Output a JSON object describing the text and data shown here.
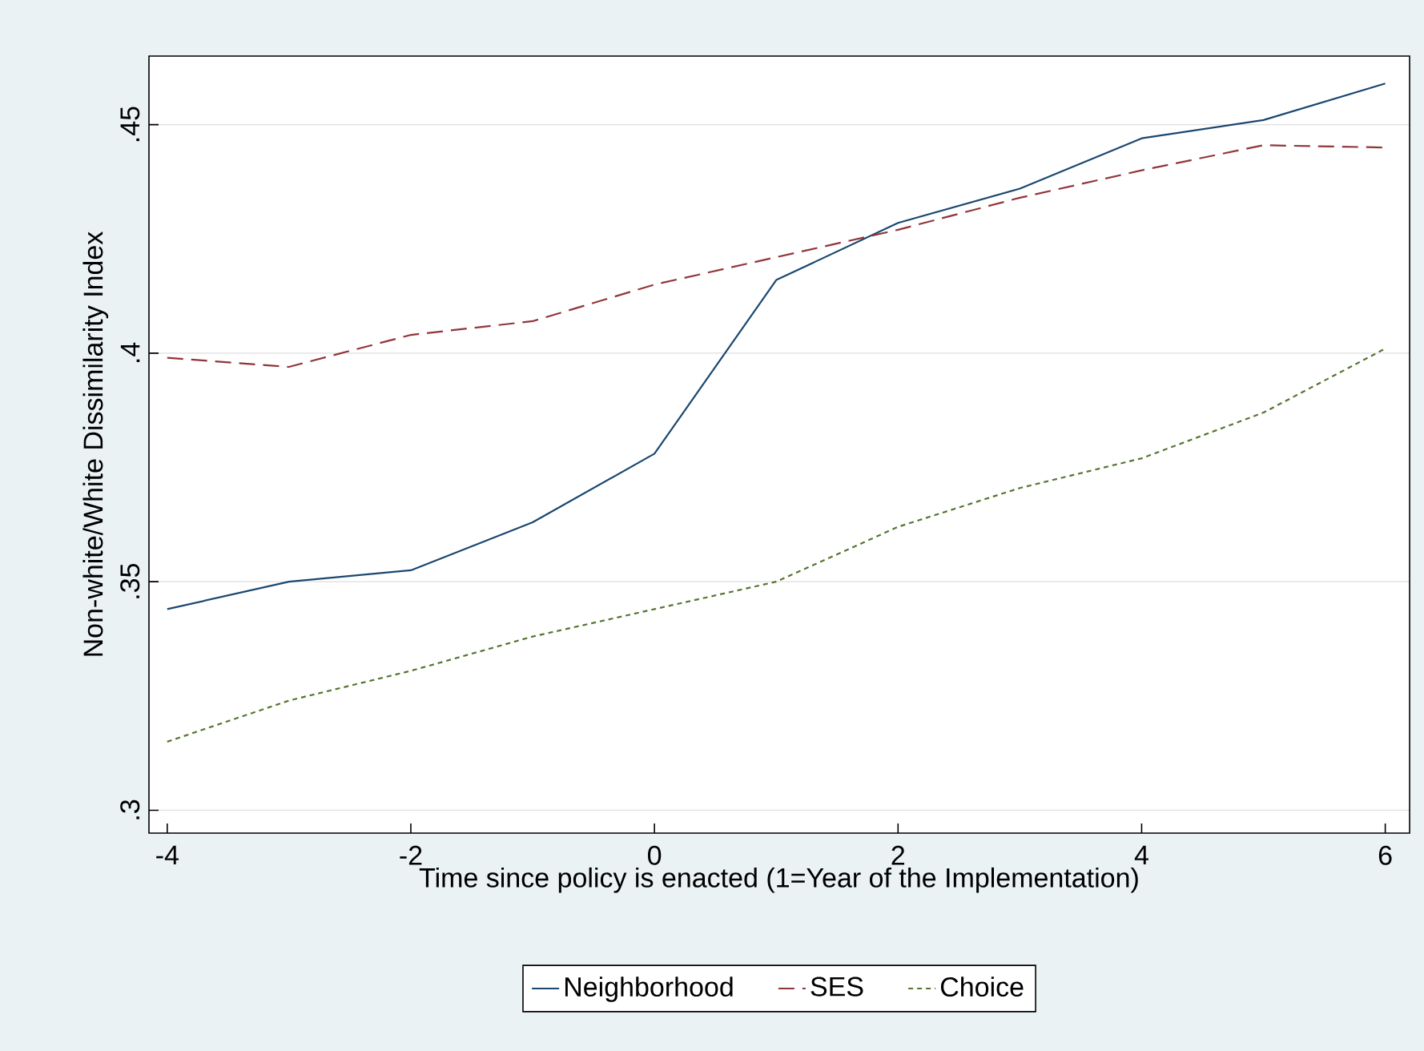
{
  "chart_data": {
    "type": "line",
    "xlabel": "Time since policy is enacted (1=Year of the Implementation)",
    "ylabel": "Non-white/White Dissimilarity Index",
    "x": [
      -4,
      -3,
      -2,
      -1,
      0,
      1,
      2,
      3,
      4,
      5,
      6
    ],
    "series": [
      {
        "name": "Neighborhood",
        "color": "#1a476f",
        "line_style": "solid",
        "values": [
          0.344,
          0.35,
          0.3525,
          0.363,
          0.378,
          0.416,
          0.4285,
          0.436,
          0.447,
          0.451,
          0.459
        ]
      },
      {
        "name": "SES",
        "color": "#90353b",
        "line_style": "dashed",
        "values": [
          0.399,
          0.397,
          0.404,
          0.407,
          0.415,
          0.421,
          0.427,
          0.434,
          0.44,
          0.4455,
          0.445
        ]
      },
      {
        "name": "Choice",
        "color": "#55752f",
        "line_style": "dotted",
        "values": [
          0.315,
          0.324,
          0.3305,
          0.338,
          0.344,
          0.35,
          0.362,
          0.3705,
          0.377,
          0.387,
          0.401
        ]
      }
    ],
    "xlim": [
      -4.15,
      6.2
    ],
    "ylim": [
      0.295,
      0.465
    ],
    "xticks": [
      -4,
      -2,
      0,
      2,
      4,
      6
    ],
    "yticks": [
      {
        "value": 0.3,
        "label": ".3"
      },
      {
        "value": 0.35,
        "label": ".35"
      },
      {
        "value": 0.4,
        "label": ".4"
      },
      {
        "value": 0.45,
        "label": ".45"
      }
    ],
    "grid": "y",
    "legend": "bottom",
    "marker": "none"
  }
}
